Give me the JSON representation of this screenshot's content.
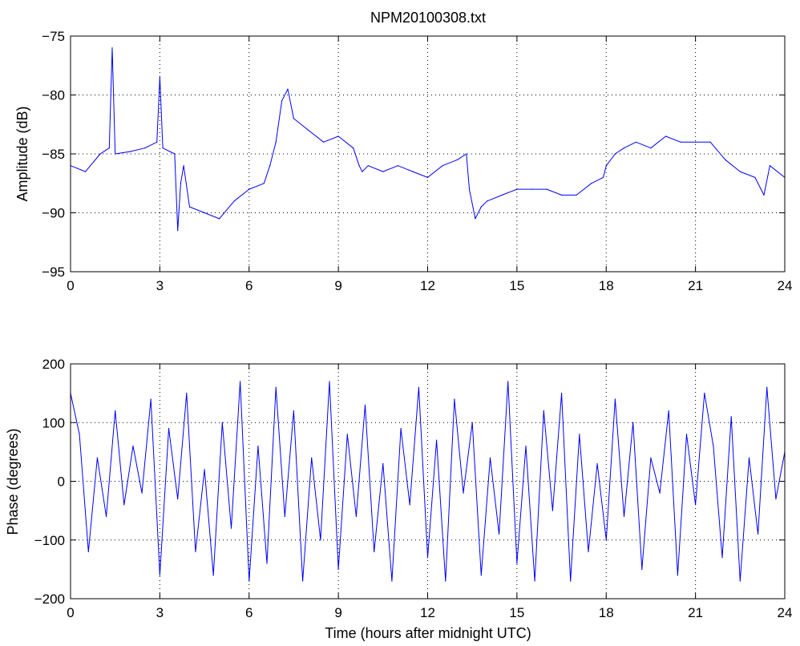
{
  "figure": {
    "title": "NPM20100308.txt",
    "xlabel": "Time (hours after midnight UTC)",
    "series_color": "#0000ff"
  },
  "chart_data": [
    {
      "type": "line",
      "title": "NPM20100308.txt",
      "xlabel": "",
      "ylabel": "Amplitude (dB)",
      "xlim": [
        0,
        24
      ],
      "ylim": [
        -95,
        -75
      ],
      "xticks": [
        0,
        3,
        6,
        9,
        12,
        15,
        18,
        21,
        24
      ],
      "yticks": [
        -95,
        -90,
        -85,
        -80,
        -75
      ],
      "grid": true,
      "series": [
        {
          "x": [
            0,
            0.5,
            1.0,
            1.3,
            1.4,
            1.5,
            2.0,
            2.5,
            2.9,
            3.0,
            3.1,
            3.5,
            3.6,
            3.7,
            3.8,
            4.0,
            4.5,
            5.0,
            5.5,
            6.0,
            6.5,
            6.7,
            6.9,
            7.1,
            7.3,
            7.5,
            8.0,
            8.5,
            9.0,
            9.5,
            9.7,
            9.8,
            10.0,
            10.5,
            11.0,
            11.5,
            12.0,
            12.5,
            13.0,
            13.3,
            13.4,
            13.6,
            13.8,
            14.0,
            14.5,
            15.0,
            15.5,
            16.0,
            16.5,
            17.0,
            17.5,
            17.9,
            18.0,
            18.3,
            18.6,
            19.0,
            19.5,
            20.0,
            20.5,
            21.0,
            21.5,
            22.0,
            22.5,
            23.0,
            23.3,
            23.5,
            24.0
          ],
          "y": [
            -86,
            -86.5,
            -85,
            -84.5,
            -76,
            -85,
            -84.8,
            -84.5,
            -84,
            -78.5,
            -84.5,
            -85,
            -91.5,
            -87.5,
            -86,
            -89.5,
            -90,
            -90.5,
            -89,
            -88,
            -87.5,
            -86,
            -84,
            -80.5,
            -79.5,
            -82,
            -83,
            -84,
            -83.5,
            -84.5,
            -86,
            -86.5,
            -86,
            -86.5,
            -86,
            -86.5,
            -87,
            -86,
            -85.5,
            -85,
            -88,
            -90.5,
            -89.5,
            -89,
            -88.5,
            -88,
            -88,
            -88,
            -88.5,
            -88.5,
            -87.5,
            -87,
            -86,
            -85,
            -84.5,
            -84,
            -84.5,
            -83.5,
            -84,
            -84,
            -84,
            -85.5,
            -86.5,
            -87,
            -88.5,
            -86,
            -87
          ]
        }
      ]
    },
    {
      "type": "line",
      "title": "",
      "xlabel": "Time (hours after midnight UTC)",
      "ylabel": "Phase (degrees)",
      "xlim": [
        0,
        24
      ],
      "ylim": [
        -200,
        200
      ],
      "xticks": [
        0,
        3,
        6,
        9,
        12,
        15,
        18,
        21,
        24
      ],
      "yticks": [
        -200,
        -100,
        0,
        100,
        200
      ],
      "grid": true,
      "series": [
        {
          "x": [
            0,
            0.3,
            0.6,
            0.9,
            1.2,
            1.5,
            1.8,
            2.1,
            2.4,
            2.7,
            3.0,
            3.3,
            3.6,
            3.9,
            4.2,
            4.5,
            4.8,
            5.1,
            5.4,
            5.7,
            6.0,
            6.3,
            6.6,
            6.9,
            7.2,
            7.5,
            7.8,
            8.1,
            8.4,
            8.7,
            9.0,
            9.3,
            9.6,
            9.9,
            10.2,
            10.5,
            10.8,
            11.1,
            11.4,
            11.7,
            12.0,
            12.3,
            12.6,
            12.9,
            13.2,
            13.5,
            13.8,
            14.1,
            14.4,
            14.7,
            15.0,
            15.3,
            15.6,
            15.9,
            16.2,
            16.5,
            16.8,
            17.1,
            17.4,
            17.7,
            18.0,
            18.3,
            18.6,
            18.9,
            19.2,
            19.5,
            19.8,
            20.1,
            20.4,
            20.7,
            21.0,
            21.3,
            21.6,
            21.9,
            22.2,
            22.5,
            22.8,
            23.1,
            23.4,
            23.7,
            24.0
          ],
          "y": [
            150,
            80,
            -120,
            40,
            -60,
            120,
            -40,
            60,
            -20,
            140,
            -160,
            90,
            -30,
            150,
            -120,
            20,
            -160,
            100,
            -80,
            170,
            -170,
            60,
            -140,
            160,
            -60,
            120,
            -170,
            40,
            -100,
            170,
            -150,
            80,
            -60,
            130,
            -120,
            30,
            -170,
            90,
            -40,
            160,
            -130,
            70,
            -170,
            140,
            -20,
            100,
            -160,
            40,
            -90,
            170,
            -140,
            60,
            -170,
            120,
            -50,
            150,
            -170,
            80,
            -120,
            30,
            -100,
            140,
            -60,
            100,
            -150,
            40,
            -20,
            120,
            -160,
            80,
            -40,
            150,
            60,
            -130,
            110,
            -170,
            40,
            -90,
            160,
            -30,
            50
          ]
        }
      ]
    }
  ]
}
